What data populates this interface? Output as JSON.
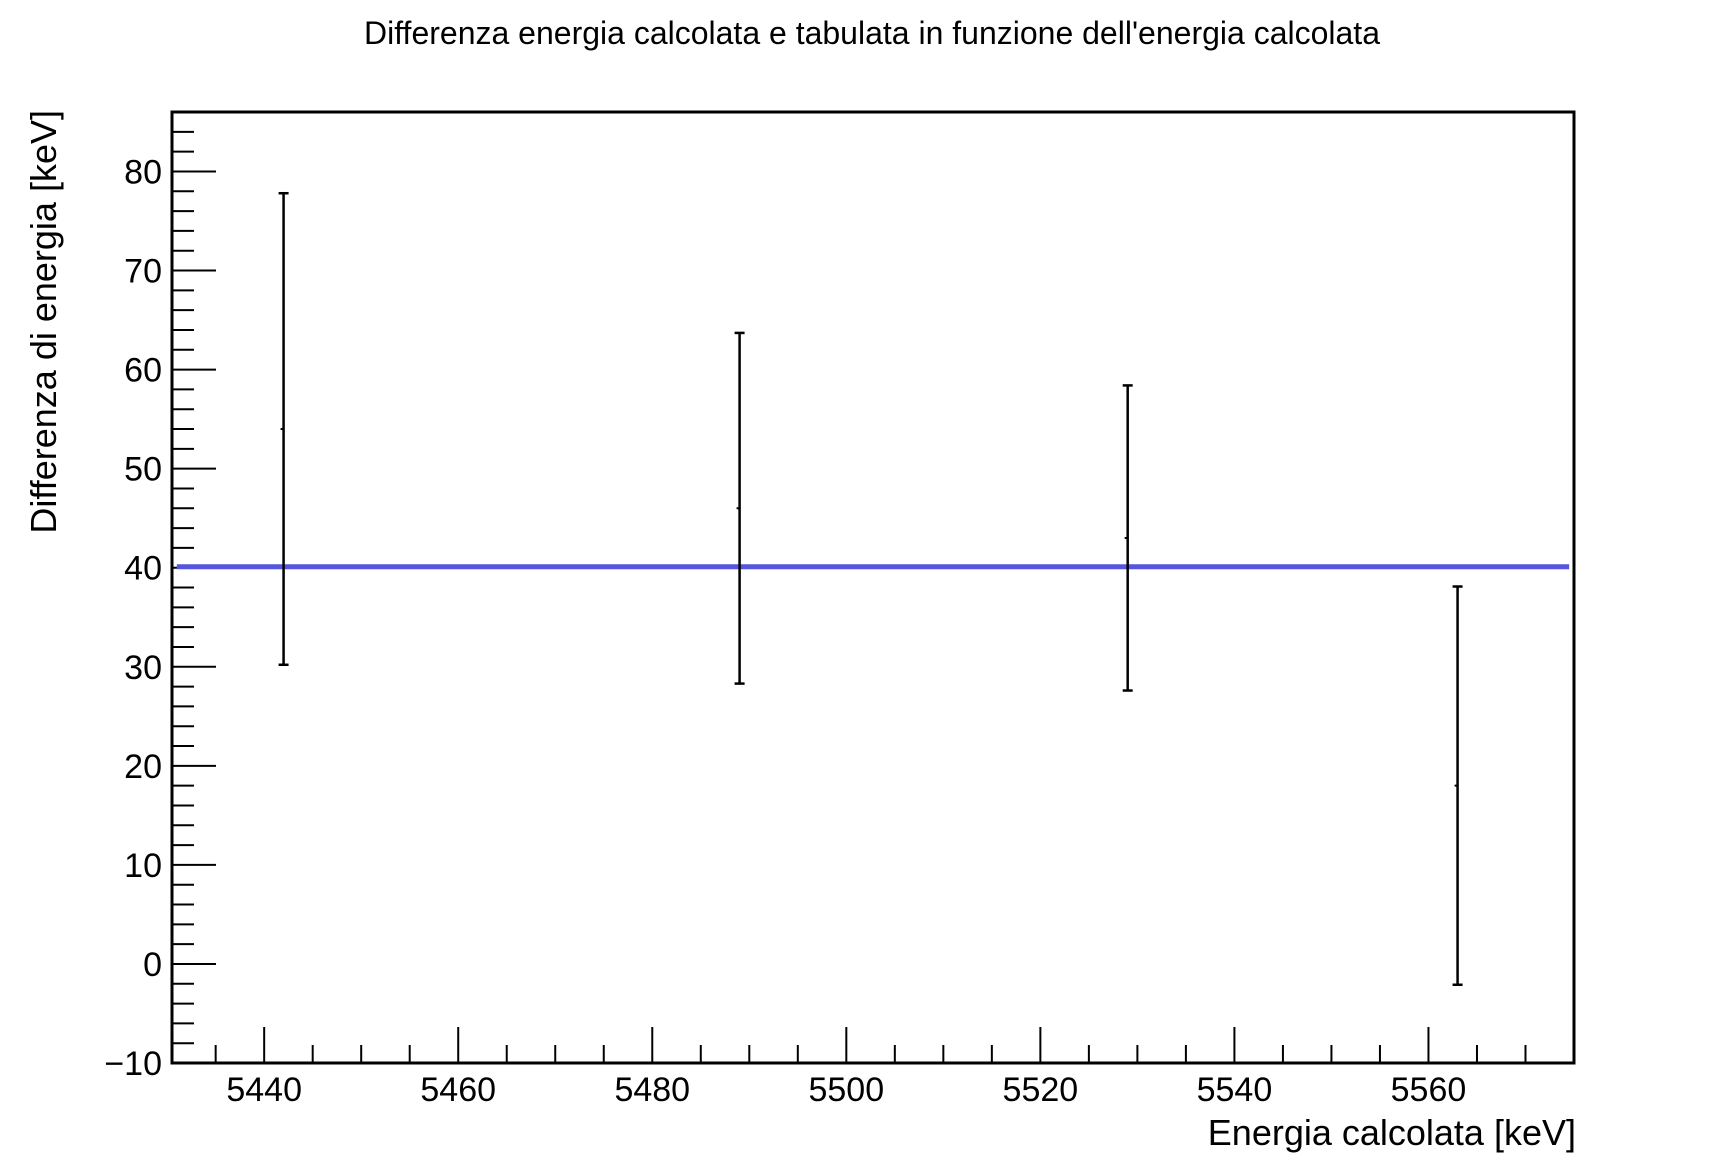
{
  "chart_data": {
    "type": "scatter",
    "title": "Differenza energia calcolata e tabulata in funzione dell'energia calcolata",
    "xlabel": "Energia calcolata [keV]",
    "ylabel": "Differenza di energia [keV]",
    "xlim": [
      5430.5,
      5575
    ],
    "ylim": [
      -10,
      86
    ],
    "x_ticks": [
      5440,
      5460,
      5480,
      5500,
      5520,
      5540,
      5560
    ],
    "x_tick_labels": [
      "5440",
      "5460",
      "5480",
      "5500",
      "5520",
      "5540",
      "5560"
    ],
    "y_ticks": [
      -10,
      0,
      10,
      20,
      30,
      40,
      50,
      60,
      70,
      80
    ],
    "y_tick_labels": [
      "−10",
      "0",
      "10",
      "20",
      "30",
      "40",
      "50",
      "60",
      "70",
      "80"
    ],
    "points": [
      {
        "x": 5442,
        "y": 54,
        "y_low": 30.2,
        "y_high": 77.8
      },
      {
        "x": 5489,
        "y": 46,
        "y_low": 28.3,
        "y_high": 63.7
      },
      {
        "x": 5529,
        "y": 43,
        "y_low": 27.6,
        "y_high": 58.4
      },
      {
        "x": 5563,
        "y": 18,
        "y_low": -2.1,
        "y_high": 38.1
      }
    ],
    "fit_line": {
      "y": 40.1,
      "x_from": 5431,
      "x_to": 5574.5,
      "color": "#5555dd"
    },
    "grid": false,
    "colors": {
      "points": "#000000",
      "fit": "#5555dd",
      "frame": "#000000"
    }
  }
}
